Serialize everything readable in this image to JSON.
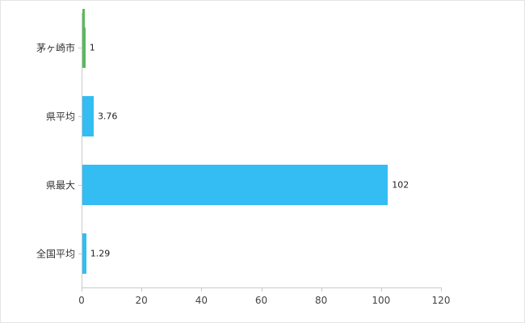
{
  "chart_data": {
    "type": "bar",
    "orientation": "horizontal",
    "categories": [
      "茅ヶ崎市",
      "県平均",
      "県最大",
      "全国平均"
    ],
    "values": [
      1,
      3.76,
      102,
      1.29
    ],
    "value_labels": [
      "1",
      "3.76",
      "102",
      "1.29"
    ],
    "bar_colors": [
      "#5cb85c",
      "#33bdf2",
      "#33bdf2",
      "#33bdf2"
    ],
    "xlim": [
      0,
      120
    ],
    "x_ticks": [
      0,
      20,
      40,
      60,
      80,
      100,
      120
    ],
    "grid": false,
    "legend": "none",
    "colors": {
      "axis": "#c9c9c9",
      "category_text": "#333333",
      "value_text": "#222222",
      "tick_text": "#444444",
      "background": "#ffffff",
      "accent_green": "#5cb85c",
      "accent_blue": "#33bdf2"
    }
  }
}
